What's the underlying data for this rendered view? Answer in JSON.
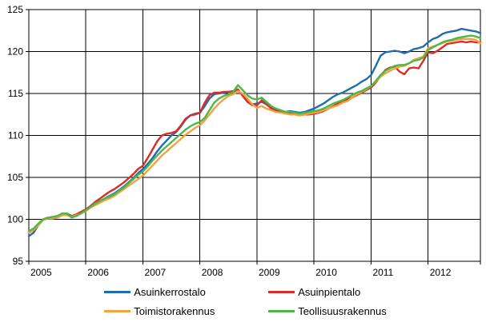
{
  "chart_data": {
    "type": "line",
    "title": "",
    "frequency": "monthly",
    "x_start": "2005-01",
    "x_end": "2012-12",
    "x_tick_labels": [
      "2005",
      "2006",
      "2007",
      "2008",
      "2009",
      "2010",
      "2011",
      "2012"
    ],
    "y_ticks": [
      95,
      100,
      105,
      110,
      115,
      120,
      125
    ],
    "ylim": [
      95,
      125
    ],
    "grid": true,
    "legend_position": "bottom",
    "series": [
      {
        "name": "Asuinkerrostalo",
        "color": "#1e6cb1",
        "values": [
          98.0,
          98.4,
          99.3,
          100.0,
          100.1,
          100.2,
          100.3,
          100.6,
          100.7,
          100.4,
          100.5,
          100.8,
          101.1,
          101.5,
          101.9,
          102.2,
          102.5,
          102.8,
          103.1,
          103.5,
          103.9,
          104.4,
          104.9,
          105.5,
          106.0,
          106.6,
          107.3,
          108.1,
          108.8,
          109.4,
          110.0,
          110.4,
          111.1,
          111.9,
          112.4,
          112.6,
          112.7,
          113.5,
          114.4,
          114.9,
          115.0,
          115.1,
          115.2,
          115.2,
          115.4,
          114.8,
          114.0,
          113.7,
          113.8,
          114.0,
          113.7,
          113.4,
          113.1,
          112.9,
          112.8,
          112.9,
          112.8,
          112.7,
          112.8,
          113.0,
          113.2,
          113.5,
          113.8,
          114.2,
          114.6,
          114.9,
          115.1,
          115.4,
          115.7,
          116.0,
          116.4,
          116.7,
          117.2,
          118.3,
          119.5,
          119.9,
          120.0,
          120.1,
          120.0,
          119.8,
          120.0,
          120.3,
          120.4,
          120.6,
          121.1,
          121.5,
          121.7,
          122.1,
          122.3,
          122.4,
          122.5,
          122.7,
          122.6,
          122.5,
          122.4,
          122.2
        ]
      },
      {
        "name": "Asuinpientalo",
        "color": "#dd2b26",
        "values": [
          98.4,
          98.7,
          99.4,
          100.0,
          100.2,
          100.2,
          100.4,
          100.6,
          100.6,
          100.4,
          100.6,
          100.9,
          101.2,
          101.6,
          102.1,
          102.5,
          102.9,
          103.3,
          103.6,
          104.0,
          104.4,
          104.9,
          105.4,
          106.0,
          106.4,
          107.3,
          108.3,
          109.3,
          110.0,
          110.2,
          110.3,
          110.5,
          111.2,
          112.0,
          112.4,
          112.5,
          112.7,
          113.9,
          114.8,
          115.1,
          115.1,
          115.2,
          115.2,
          115.3,
          115.5,
          114.7,
          114.0,
          113.6,
          113.6,
          114.2,
          113.7,
          113.2,
          112.9,
          112.8,
          112.7,
          112.6,
          112.5,
          112.4,
          112.5,
          112.5,
          112.6,
          112.7,
          112.9,
          113.2,
          113.5,
          113.8,
          114.0,
          114.3,
          114.5,
          114.8,
          115.1,
          115.4,
          115.7,
          116.3,
          117.1,
          117.8,
          118.1,
          118.2,
          117.6,
          117.3,
          118.0,
          118.1,
          118.0,
          118.9,
          119.9,
          119.8,
          120.1,
          120.5,
          120.9,
          121.0,
          121.1,
          121.2,
          121.1,
          121.2,
          121.1,
          121.1
        ]
      },
      {
        "name": "Toimistorakennus",
        "color": "#f6a040",
        "values": [
          98.4,
          98.7,
          99.3,
          99.9,
          100.1,
          100.1,
          100.2,
          100.5,
          100.5,
          100.3,
          100.5,
          100.7,
          101.0,
          101.4,
          101.7,
          102.0,
          102.3,
          102.5,
          102.8,
          103.2,
          103.6,
          104.0,
          104.4,
          104.8,
          105.2,
          105.8,
          106.4,
          107.0,
          107.6,
          108.1,
          108.6,
          109.1,
          109.6,
          110.1,
          110.5,
          110.9,
          111.2,
          111.8,
          112.5,
          113.2,
          113.8,
          114.3,
          114.7,
          114.9,
          115.3,
          115.0,
          114.4,
          113.7,
          113.3,
          113.5,
          113.2,
          113.0,
          112.8,
          112.7,
          112.6,
          112.5,
          112.5,
          112.4,
          112.5,
          112.6,
          112.7,
          112.8,
          113.0,
          113.2,
          113.4,
          113.6,
          113.9,
          114.1,
          114.5,
          114.9,
          115.2,
          115.5,
          115.9,
          116.4,
          117.0,
          117.4,
          117.7,
          118.0,
          118.2,
          118.3,
          118.6,
          119.0,
          119.2,
          119.4,
          120.4,
          120.6,
          120.8,
          121.0,
          121.2,
          121.3,
          121.4,
          121.5,
          121.5,
          121.5,
          121.4,
          121.0
        ]
      },
      {
        "name": "Teollisuusrakennus",
        "color": "#4db848",
        "values": [
          98.6,
          98.9,
          99.5,
          100.0,
          100.2,
          100.3,
          100.4,
          100.7,
          100.7,
          100.2,
          100.4,
          100.7,
          101.1,
          101.5,
          101.9,
          102.2,
          102.5,
          102.7,
          103.0,
          103.4,
          103.8,
          104.3,
          104.8,
          105.3,
          105.7,
          106.3,
          107.0,
          107.6,
          108.2,
          108.7,
          109.2,
          109.7,
          110.2,
          110.7,
          111.1,
          111.4,
          111.6,
          112.1,
          113.0,
          113.9,
          114.4,
          114.7,
          114.9,
          115.2,
          116.0,
          115.4,
          114.8,
          114.4,
          114.3,
          114.5,
          114.0,
          113.5,
          113.2,
          113.0,
          112.8,
          112.8,
          112.7,
          112.6,
          112.7,
          112.8,
          112.9,
          113.0,
          113.2,
          113.5,
          113.8,
          114.0,
          114.2,
          114.5,
          114.8,
          115.1,
          115.3,
          115.6,
          115.9,
          116.5,
          117.2,
          117.7,
          118.0,
          118.3,
          118.4,
          118.4,
          118.6,
          118.9,
          119.0,
          119.3,
          120.2,
          120.5,
          120.8,
          121.1,
          121.3,
          121.4,
          121.6,
          121.7,
          121.8,
          121.9,
          121.8,
          121.6
        ]
      }
    ]
  }
}
